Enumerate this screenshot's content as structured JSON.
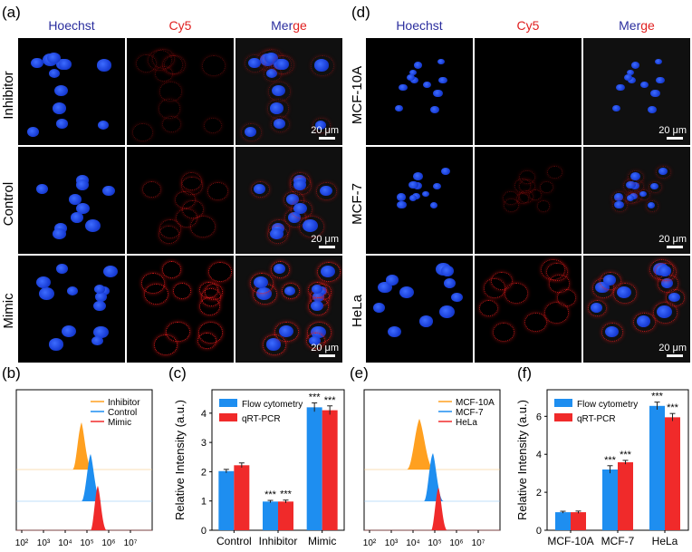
{
  "panel_labels": {
    "a": "(a)",
    "b": "(b)",
    "c": "(c)",
    "d": "(d)",
    "e": "(e)",
    "f": "(f)"
  },
  "channels": {
    "hoechst": "Hoechst",
    "cy5": "Cy5",
    "merge_prefix": "Mer",
    "merge_suffix": "ge"
  },
  "colors": {
    "blue_title": "#2b2e9e",
    "red_title": "#e02020",
    "orange": "#ffa020",
    "blue": "#1e8ef0",
    "red": "#f02a2a"
  },
  "scale_label": "20 μm",
  "left_rows": [
    "Inhibitor",
    "Control",
    "Mimic"
  ],
  "right_rows": [
    "MCF-10A",
    "MCF-7",
    "HeLa"
  ],
  "flow_b": {
    "legend": [
      "Inhibitor",
      "Control",
      "Mimic"
    ],
    "ticks": [
      "10²",
      "10³",
      "10⁴",
      "10⁵",
      "10⁶",
      "10⁷"
    ]
  },
  "flow_e": {
    "legend": [
      "MCF-10A",
      "MCF-7",
      "HeLa"
    ],
    "ticks": [
      "10²",
      "10³",
      "10⁴",
      "10⁵",
      "10⁶",
      "10⁷"
    ]
  },
  "chart_data": [
    {
      "id": "c",
      "type": "bar",
      "categories": [
        "Control",
        "Inhibitor",
        "Mimic"
      ],
      "series": [
        {
          "name": "Flow cytometry",
          "values": [
            2.02,
            0.98,
            4.2
          ],
          "errors": [
            0.06,
            0.04,
            0.15
          ]
        },
        {
          "name": "qRT-PCR",
          "values": [
            2.22,
            0.98,
            4.1
          ],
          "errors": [
            0.08,
            0.05,
            0.15
          ]
        }
      ],
      "ylabel": "Relative Intensity (a.u.)",
      "ylim": [
        0,
        4.8
      ],
      "yticks": [
        "0",
        "1",
        "2",
        "3",
        "4"
      ],
      "annotations": [
        "***",
        "***",
        "***",
        "***"
      ]
    },
    {
      "id": "f",
      "type": "bar",
      "categories": [
        "MCF-10A",
        "MCF-7",
        "HeLa"
      ],
      "series": [
        {
          "name": "Flow cytometry",
          "values": [
            0.95,
            3.2,
            6.55
          ],
          "errors": [
            0.05,
            0.2,
            0.2
          ]
        },
        {
          "name": "qRT-PCR",
          "values": [
            0.95,
            3.58,
            5.95
          ],
          "errors": [
            0.06,
            0.1,
            0.2
          ]
        }
      ],
      "ylabel": "Relative Intensity (a.u.)",
      "ylim": [
        0,
        7.4
      ],
      "yticks": [
        "0",
        "2",
        "4",
        "6"
      ],
      "annotations": [
        "***",
        "***",
        "***",
        "***"
      ]
    }
  ]
}
